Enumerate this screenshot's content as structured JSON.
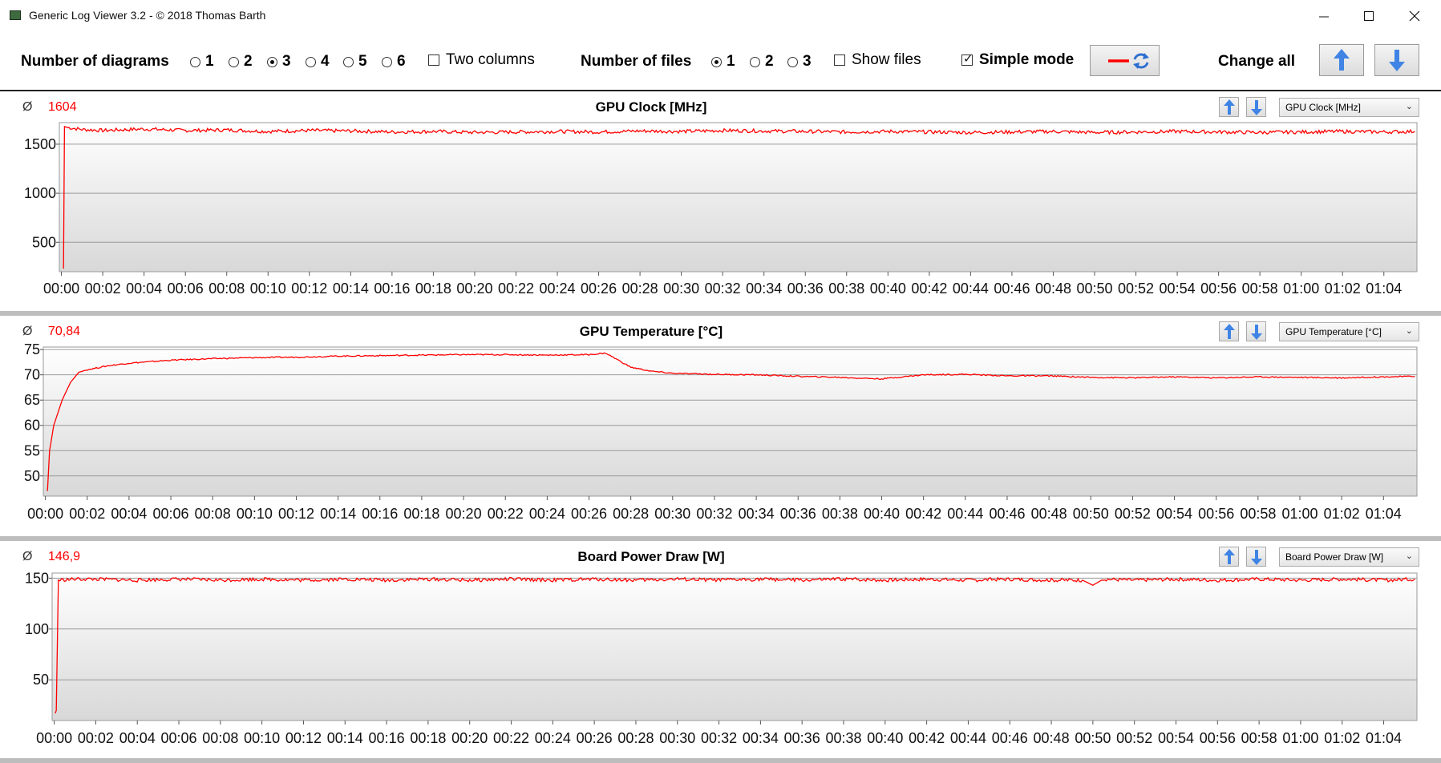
{
  "window": {
    "title": "Generic Log Viewer 3.2 - © 2018 Thomas Barth"
  },
  "toolbar": {
    "num_diagrams_label": "Number of diagrams",
    "diagram_options": [
      "1",
      "2",
      "3",
      "4",
      "5",
      "6"
    ],
    "diagram_selected": "3",
    "two_columns_label": "Two columns",
    "two_columns_checked": false,
    "num_files_label": "Number of files",
    "file_options": [
      "1",
      "2",
      "3"
    ],
    "file_selected": "1",
    "show_files_label": "Show files",
    "show_files_checked": false,
    "simple_mode_label": "Simple mode",
    "simple_mode_checked": true,
    "change_all_label": "Change all",
    "series_color": "#ff0000",
    "refresh_icon_color": "#2d6fd0"
  },
  "time_labels": [
    "00:00",
    "00:02",
    "00:04",
    "00:06",
    "00:08",
    "00:10",
    "00:12",
    "00:14",
    "00:16",
    "00:18",
    "00:20",
    "00:22",
    "00:24",
    "00:26",
    "00:28",
    "00:30",
    "00:32",
    "00:34",
    "00:36",
    "00:38",
    "00:40",
    "00:42",
    "00:44",
    "00:46",
    "00:48",
    "00:50",
    "00:52",
    "00:54",
    "00:56",
    "00:58",
    "01:00",
    "01:02",
    "01:04"
  ],
  "diagrams": [
    {
      "title": "GPU Clock [MHz]",
      "average_symbol": "Ø",
      "average": "1604",
      "selector_value": "GPU Clock [MHz]"
    },
    {
      "title": "GPU Temperature [°C]",
      "average_symbol": "Ø",
      "average": "70,84",
      "selector_value": "GPU Temperature [°C]"
    },
    {
      "title": "Board Power Draw [W]",
      "average_symbol": "Ø",
      "average": "146,9",
      "selector_value": "Board Power Draw [W]"
    }
  ],
  "chart_data": [
    {
      "type": "line",
      "title": "GPU Clock [MHz]",
      "x_unit": "minutes",
      "x_ticks": [
        "00:00",
        "00:02",
        "00:04",
        "00:06",
        "00:08",
        "00:10",
        "00:12",
        "00:14",
        "00:16",
        "00:18",
        "00:20",
        "00:22",
        "00:24",
        "00:26",
        "00:28",
        "00:30",
        "00:32",
        "00:34",
        "00:36",
        "00:38",
        "00:40",
        "00:42",
        "00:44",
        "00:46",
        "00:48",
        "00:50",
        "00:52",
        "00:54",
        "00:56",
        "00:58",
        "01:00",
        "01:02",
        "01:04"
      ],
      "yticks": [
        500,
        1000,
        1500
      ],
      "ylim": [
        200,
        1720
      ],
      "xlim": [
        -0.1,
        65.6
      ],
      "series": [
        {
          "color": "#ff0000",
          "x": [
            0.1,
            0.15,
            0.3,
            1,
            2,
            4,
            6,
            8,
            10,
            12,
            14,
            16,
            18,
            20,
            22,
            24,
            26,
            28,
            30,
            32,
            34,
            36,
            38,
            40,
            42,
            44,
            46,
            48,
            50,
            52,
            54,
            56,
            58,
            60,
            62,
            64,
            65.5
          ],
          "y": [
            230,
            1680,
            1670,
            1650,
            1640,
            1655,
            1640,
            1645,
            1630,
            1640,
            1635,
            1625,
            1630,
            1620,
            1625,
            1630,
            1625,
            1635,
            1630,
            1640,
            1635,
            1630,
            1625,
            1630,
            1625,
            1620,
            1625,
            1630,
            1620,
            1625,
            1630,
            1625,
            1620,
            1625,
            1630,
            1625,
            1630
          ]
        }
      ]
    },
    {
      "type": "line",
      "title": "GPU Temperature [°C]",
      "x_unit": "minutes",
      "x_ticks": [
        "00:00",
        "00:02",
        "00:04",
        "00:06",
        "00:08",
        "00:10",
        "00:12",
        "00:14",
        "00:16",
        "00:18",
        "00:20",
        "00:22",
        "00:24",
        "00:26",
        "00:28",
        "00:30",
        "00:32",
        "00:34",
        "00:36",
        "00:38",
        "00:40",
        "00:42",
        "00:44",
        "00:46",
        "00:48",
        "00:50",
        "00:52",
        "00:54",
        "00:56",
        "00:58",
        "01:00",
        "01:02",
        "01:04"
      ],
      "yticks": [
        50,
        55,
        60,
        65,
        70,
        75
      ],
      "ylim": [
        46,
        75.5
      ],
      "xlim": [
        -0.1,
        65.6
      ],
      "series": [
        {
          "color": "#ff0000",
          "x": [
            0.1,
            0.2,
            0.4,
            0.8,
            1.2,
            1.6,
            2,
            3,
            4,
            6,
            8,
            10,
            12,
            14,
            16,
            18,
            20,
            22,
            24,
            26,
            26.8,
            28,
            29,
            30,
            32,
            34,
            36,
            38,
            40,
            42,
            44,
            46,
            48,
            50,
            52,
            54,
            56,
            58,
            60,
            62,
            64,
            65.5
          ],
          "y": [
            47,
            55,
            60,
            65,
            68.5,
            70.5,
            71,
            71.8,
            72.3,
            72.9,
            73.2,
            73.4,
            73.5,
            73.7,
            73.8,
            73.9,
            74,
            74,
            73.9,
            74,
            74.3,
            71.5,
            70.7,
            70.3,
            70.1,
            70,
            69.7,
            69.5,
            69.2,
            70,
            70.1,
            69.8,
            69.8,
            69.5,
            69.4,
            69.6,
            69.4,
            69.6,
            69.5,
            69.4,
            69.6,
            69.7
          ]
        }
      ]
    },
    {
      "type": "line",
      "title": "Board Power Draw [W]",
      "x_unit": "minutes",
      "x_ticks": [
        "00:00",
        "00:02",
        "00:04",
        "00:06",
        "00:08",
        "00:10",
        "00:12",
        "00:14",
        "00:16",
        "00:18",
        "00:20",
        "00:22",
        "00:24",
        "00:26",
        "00:28",
        "00:30",
        "00:32",
        "00:34",
        "00:36",
        "00:38",
        "00:40",
        "00:42",
        "00:44",
        "00:46",
        "00:48",
        "00:50",
        "00:52",
        "00:54",
        "00:56",
        "00:58",
        "01:00",
        "01:02",
        "01:04"
      ],
      "yticks": [
        50,
        100,
        150
      ],
      "ylim": [
        10,
        155
      ],
      "xlim": [
        -0.1,
        65.6
      ],
      "series": [
        {
          "color": "#ff0000",
          "x": [
            0.05,
            0.1,
            0.2,
            1,
            2,
            4,
            6,
            8,
            10,
            12,
            14,
            16,
            18,
            20,
            22,
            24,
            26,
            28,
            30,
            32,
            34,
            36,
            38,
            40,
            42,
            44,
            46,
            48,
            49.5,
            50,
            50.5,
            52,
            54,
            56,
            58,
            60,
            62,
            64,
            65.5
          ],
          "y": [
            17,
            20,
            148,
            149,
            149,
            148,
            149,
            148,
            149,
            148,
            149,
            148,
            149,
            148,
            149,
            148,
            149,
            148,
            149,
            148,
            149,
            148,
            149,
            148,
            149,
            148,
            149,
            148,
            148,
            143,
            149,
            148,
            149,
            148,
            149,
            148,
            149,
            148,
            149
          ]
        }
      ]
    }
  ]
}
